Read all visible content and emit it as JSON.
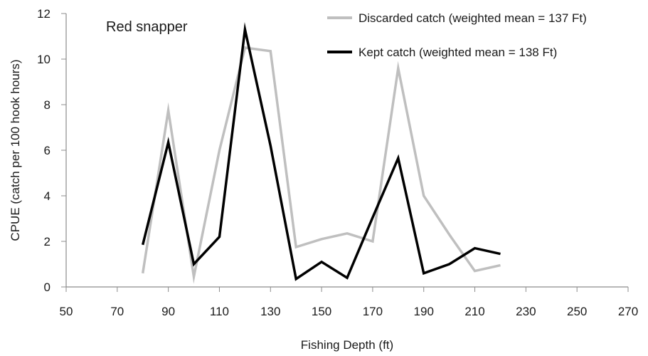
{
  "chart_data": {
    "type": "line",
    "title": "",
    "annotation": "Red snapper",
    "xlabel": "Fishing Depth (ft)",
    "ylabel": "CPUE (catch per 100 hook hours)",
    "xlim": [
      50,
      270
    ],
    "ylim": [
      0,
      12
    ],
    "x_ticks": [
      50,
      70,
      90,
      110,
      130,
      150,
      170,
      190,
      210,
      230,
      250,
      270
    ],
    "y_ticks": [
      0,
      2,
      4,
      6,
      8,
      10,
      12
    ],
    "grid": false,
    "legend_position": "top-right",
    "series": [
      {
        "name": "Discarded catch (weighted mean = 137 Ft)",
        "color": "#bfbfbf",
        "x": [
          80,
          90,
          100,
          110,
          120,
          130,
          140,
          150,
          160,
          170,
          180,
          190,
          200,
          210,
          220
        ],
        "y": [
          0.6,
          7.75,
          0.45,
          6.0,
          10.5,
          10.35,
          1.75,
          2.1,
          2.35,
          2.0,
          9.6,
          4.0,
          2.3,
          0.7,
          0.95
        ]
      },
      {
        "name": "Kept catch (weighted mean = 138 Ft)",
        "color": "#000000",
        "x": [
          80,
          90,
          100,
          110,
          120,
          130,
          140,
          150,
          160,
          170,
          180,
          190,
          200,
          210,
          220
        ],
        "y": [
          1.85,
          6.35,
          1.0,
          2.2,
          11.3,
          6.2,
          0.35,
          1.1,
          0.4,
          3.05,
          5.65,
          0.6,
          1.0,
          1.7,
          1.45
        ]
      }
    ]
  }
}
